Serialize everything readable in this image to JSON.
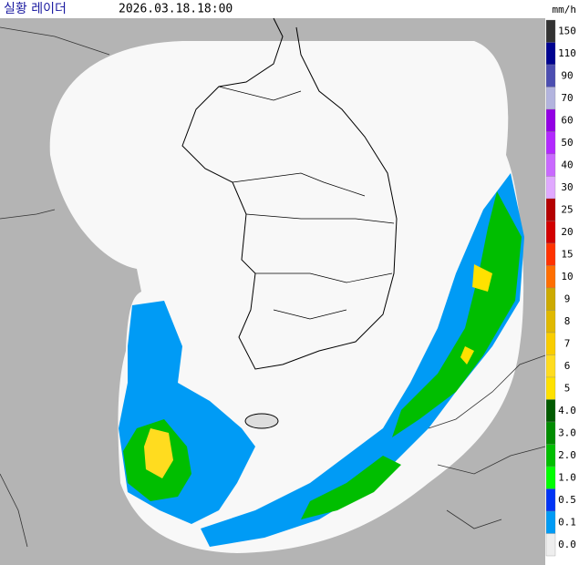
{
  "header": {
    "title": "실황 레이더",
    "time": "2026.03.18.18:00"
  },
  "legend": {
    "unit": "mm/h",
    "items": [
      {
        "label": "150",
        "color": "#333333"
      },
      {
        "label": "110",
        "color": "#000390"
      },
      {
        "label": "90",
        "color": "#4c4eb1"
      },
      {
        "label": "70",
        "color": "#b3b4de"
      },
      {
        "label": "60",
        "color": "#9300e4"
      },
      {
        "label": "50",
        "color": "#b329ff"
      },
      {
        "label": "40",
        "color": "#c969ff"
      },
      {
        "label": "30",
        "color": "#e0a9ff"
      },
      {
        "label": "25",
        "color": "#b40000"
      },
      {
        "label": "20",
        "color": "#d20000"
      },
      {
        "label": "15",
        "color": "#ff3200"
      },
      {
        "label": "10",
        "color": "#ff6e00"
      },
      {
        "label": "9",
        "color": "#ccaa00"
      },
      {
        "label": "8",
        "color": "#e0b900"
      },
      {
        "label": "7",
        "color": "#f9cd00"
      },
      {
        "label": "6",
        "color": "#ffdc1f"
      },
      {
        "label": "5",
        "color": "#ffe100"
      },
      {
        "label": "4.0",
        "color": "#005a00"
      },
      {
        "label": "3.0",
        "color": "#008c00"
      },
      {
        "label": "2.0",
        "color": "#00be00"
      },
      {
        "label": "1.0",
        "color": "#00ff00"
      },
      {
        "label": "0.5",
        "color": "#0033f5"
      },
      {
        "label": "0.1",
        "color": "#009bf5"
      },
      {
        "label": "0.0",
        "color": "#eeeeee"
      }
    ]
  }
}
